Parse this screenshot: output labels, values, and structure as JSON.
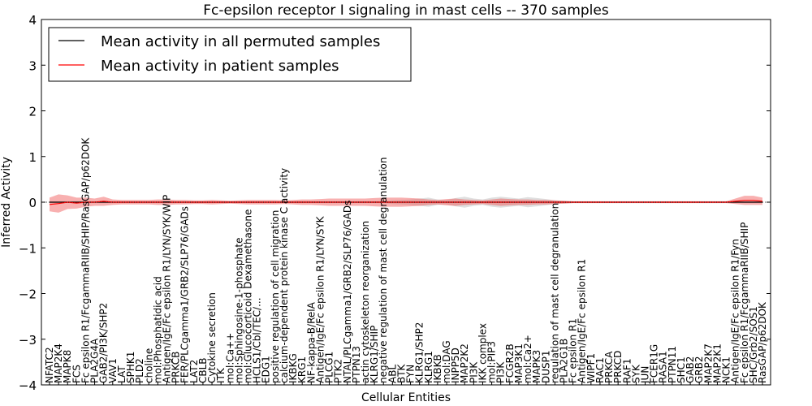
{
  "chart_data": {
    "type": "line",
    "title": "Fc-epsilon receptor I signaling in mast cells -- 370 samples",
    "xlabel": "Cellular Entities",
    "ylabel": "Inferred Activity",
    "ylim": [
      -4,
      4
    ],
    "yticks": [
      -4,
      -3,
      -2,
      -1,
      0,
      1,
      2,
      3,
      4
    ],
    "ytick_labels": [
      "−4",
      "−3",
      "−2",
      "−1",
      "0",
      "1",
      "2",
      "3",
      "4"
    ],
    "legend_position": "upper-left",
    "categories": [
      "NFATC2",
      "MAP2K4",
      "MAPK8",
      "FCS",
      "Fc epsilon R1/FcgammaRIIB/SHIP/RasGAP/p62DOK",
      "PLA2G4A",
      "GAB2/PI3K/SHP2",
      "VAV1",
      "LAT",
      "SPHK1",
      "PLD2",
      "choline",
      "mol:Phosphatidic acid",
      "Antigen/IgE/Fc epsilon R1/LYN/SYK/WIP",
      "PRKCB",
      "FER/PLCgamma1/GRB2/SLP76/GADs",
      "LAT2",
      "CBLB",
      "Cytokine secretion",
      "ITK",
      "mol:Ca++",
      "mol:Sphingosine-1-phosphate",
      "mol:Glucocorticoid Dexamethasone",
      "HCLS1/Cbl/TEC/...",
      "EDG1",
      "positive regulation of cell migration",
      "calcium-dependent protein kinase C activity",
      "IKBKG",
      "KRG1",
      "NF-kappa-B/RelA",
      "Antigen/IgE/Fc epsilon R1/LYN/SYK",
      "PLCG1",
      "PTK2",
      "NTAL/PLCgamma1/GRB2/SLP76/GADs",
      "PTPN13",
      "actin cytoskeleton reorganization",
      "KLRG1/SHIP",
      "negative regulation of mast cell degranulation",
      "ABL",
      "BTK",
      "FYN",
      "KLRG1/SHP2",
      "KLRG1",
      "IKBKB",
      "mol:DAG",
      "INPP5D",
      "MAP2K2",
      "PI3K",
      "IKK complex",
      "mol:PIP3",
      "PI3K",
      "FCGR2B",
      "MAP3K1",
      "mol:Ca2+",
      "MAPK3",
      "DUSP1",
      "regulation of mast cell degranulation",
      "PLA2G1B",
      "Fc epsilon R1",
      "Antigen/IgE/Fc epsilon R1",
      "WIPF1",
      "RAC1",
      "PRKCA",
      "PRKCD",
      "RAF1",
      "SYK",
      "JUN",
      "FCER1G",
      "RASA1",
      "PTPN11",
      "SHC1",
      "GAB2",
      "GRB2",
      "MAP2K7",
      "MAP2K1",
      "NCK1",
      "Antigen/IgE/Fc epsilon R1/Fyn",
      "Fc epsilon R1/FcgammaRIIB/SHIP",
      "SHC/Grb2/SOS1",
      "RasGAP/p62DOK"
    ],
    "series": [
      {
        "name": "Mean activity in all permuted samples",
        "color": "#000000",
        "values": [
          0,
          0,
          0,
          0,
          0,
          0,
          0,
          0,
          0,
          0,
          0,
          0,
          0,
          0,
          0,
          0,
          0,
          0,
          0,
          0,
          0,
          0,
          0,
          0,
          0,
          0,
          0,
          0,
          0,
          0,
          0,
          0,
          0,
          0,
          0,
          0,
          0,
          0,
          0,
          0,
          0,
          0,
          0,
          0,
          0,
          0,
          0,
          0,
          0,
          0,
          0,
          0,
          0,
          0,
          0,
          0,
          0,
          0,
          0,
          0,
          0,
          0,
          0,
          0,
          0,
          0,
          0,
          0,
          0,
          0,
          0,
          0,
          0,
          0,
          0,
          0,
          0,
          0,
          0,
          0
        ],
        "band_halfwidth": [
          0.02,
          0.02,
          0.02,
          0.02,
          0.02,
          0.02,
          0.02,
          0.02,
          0.02,
          0.02,
          0.02,
          0.02,
          0.02,
          0.02,
          0.02,
          0.02,
          0.02,
          0.02,
          0.02,
          0.02,
          0.02,
          0.02,
          0.02,
          0.02,
          0.02,
          0.02,
          0.02,
          0.02,
          0.02,
          0.02,
          0.02,
          0.02,
          0.02,
          0.02,
          0.02,
          0.02,
          0.02,
          0.02,
          0.04,
          0.05,
          0.06,
          0.08,
          0.1,
          0.06,
          0.05,
          0.09,
          0.12,
          0.08,
          0.06,
          0.1,
          0.12,
          0.1,
          0.08,
          0.11,
          0.09,
          0.07,
          0.04,
          0.03,
          0.02,
          0.02,
          0.02,
          0.02,
          0.02,
          0.02,
          0.02,
          0.02,
          0.02,
          0.02,
          0.02,
          0.02,
          0.02,
          0.02,
          0.02,
          0.02,
          0.02,
          0.02,
          0.02,
          0.02,
          0.02,
          0.02
        ]
      },
      {
        "name": "Mean activity in patient samples",
        "color": "#ff0000",
        "values": [
          -0.05,
          -0.03,
          0.0,
          -0.02,
          0.0,
          0.0,
          0.02,
          0.0,
          0.0,
          0.0,
          0.0,
          0.0,
          0.0,
          0.0,
          0.0,
          0.0,
          0.0,
          0.0,
          0.0,
          0.0,
          0.0,
          0.0,
          0.0,
          0.0,
          0.0,
          0.0,
          0.0,
          0.0,
          0.0,
          0.0,
          0.0,
          0.0,
          0.0,
          0.0,
          0.0,
          0.0,
          0.0,
          0.0,
          0.0,
          0.0,
          0.0,
          0.0,
          0.0,
          0.0,
          0.0,
          0.0,
          0.0,
          0.0,
          0.0,
          0.0,
          0.0,
          0.0,
          0.0,
          0.0,
          0.0,
          0.0,
          0.0,
          0.0,
          0.0,
          0.0,
          0.0,
          0.0,
          0.0,
          0.0,
          0.0,
          0.0,
          0.0,
          0.0,
          0.0,
          0.0,
          0.0,
          0.0,
          0.0,
          0.0,
          0.0,
          0.0,
          0.02,
          0.04,
          0.04,
          0.02
        ],
        "band_halfwidth": [
          0.15,
          0.2,
          0.15,
          0.12,
          0.1,
          0.08,
          0.1,
          0.06,
          0.05,
          0.05,
          0.05,
          0.05,
          0.06,
          0.06,
          0.05,
          0.05,
          0.04,
          0.04,
          0.05,
          0.04,
          0.03,
          0.04,
          0.05,
          0.05,
          0.05,
          0.05,
          0.04,
          0.05,
          0.06,
          0.06,
          0.07,
          0.08,
          0.08,
          0.08,
          0.08,
          0.08,
          0.09,
          0.1,
          0.1,
          0.1,
          0.09,
          0.08,
          0.06,
          0.05,
          0.07,
          0.08,
          0.06,
          0.05,
          0.04,
          0.06,
          0.08,
          0.07,
          0.06,
          0.06,
          0.05,
          0.05,
          0.04,
          0.03,
          0.02,
          0.02,
          0.02,
          0.02,
          0.02,
          0.02,
          0.02,
          0.02,
          0.02,
          0.02,
          0.02,
          0.02,
          0.02,
          0.02,
          0.02,
          0.02,
          0.02,
          0.02,
          0.06,
          0.1,
          0.1,
          0.08
        ]
      }
    ]
  }
}
